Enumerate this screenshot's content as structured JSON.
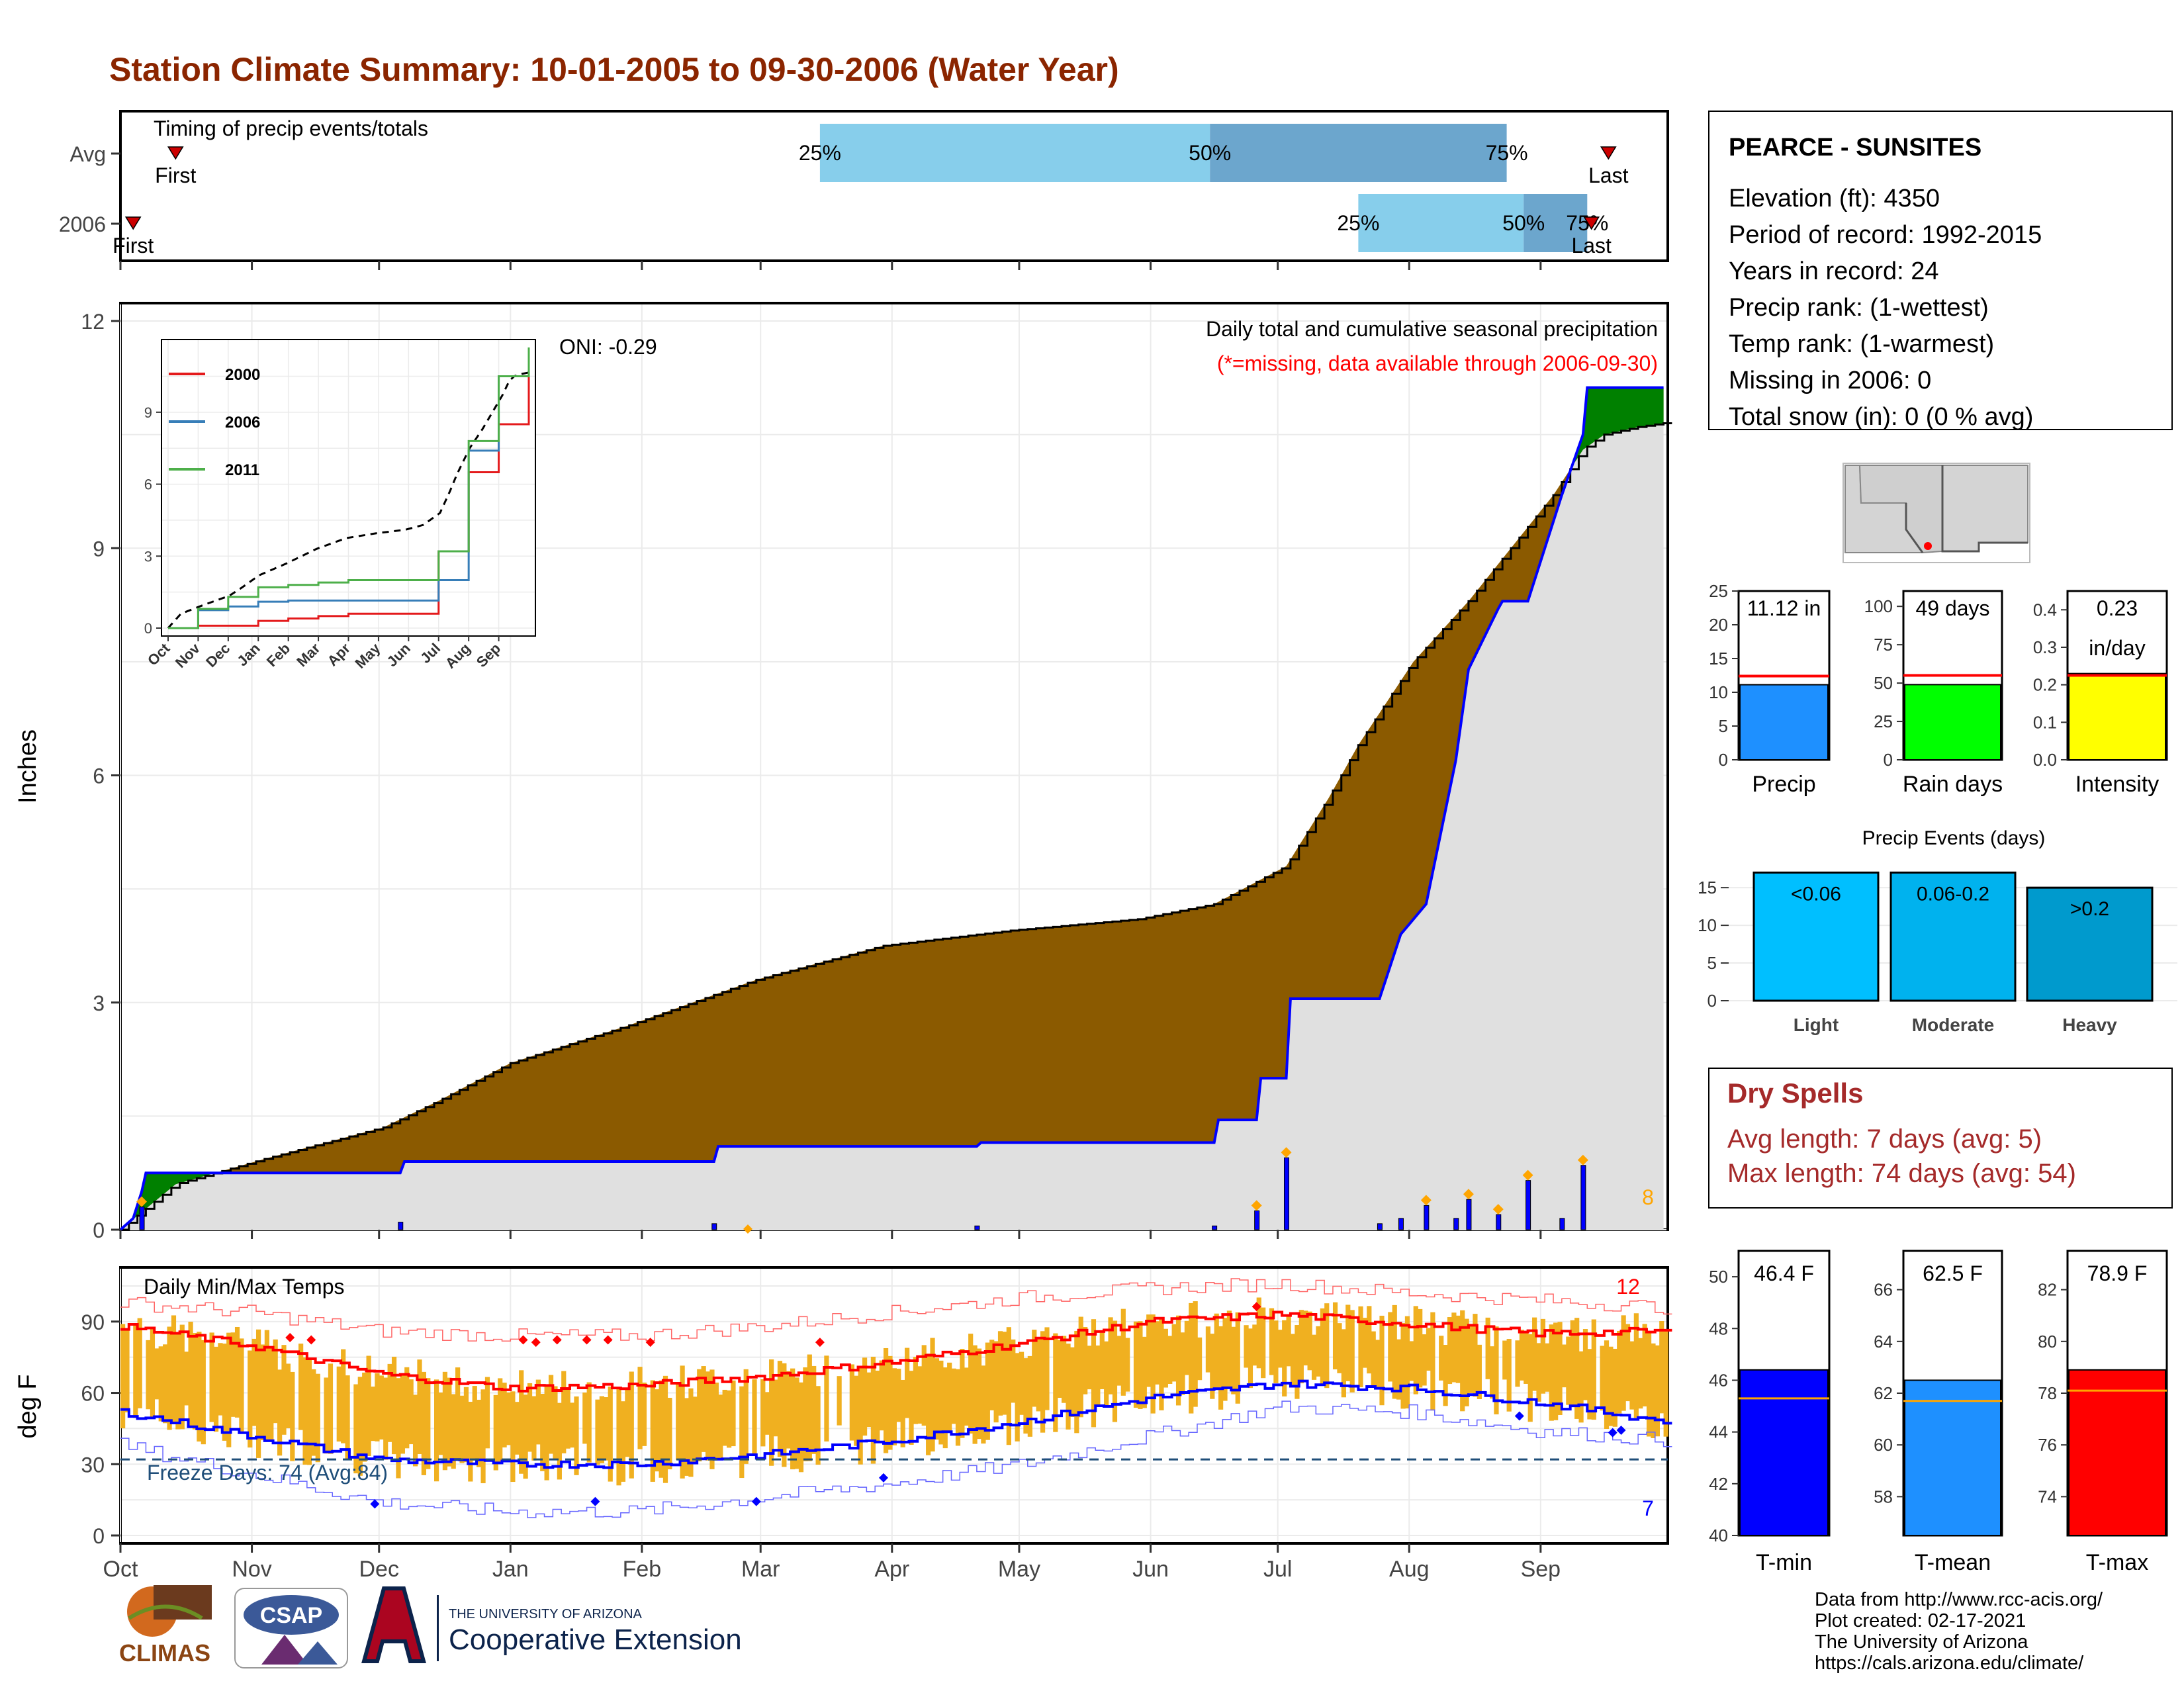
{
  "title": "Station Climate Summary: 10-01-2005 to 09-30-2006 (Water Year)",
  "colors": {
    "title": "#8B2500",
    "avg_area": "#8B5A00",
    "above_area": "#008000",
    "base_area": "#E0E0E0",
    "obs_line": "#0000FF",
    "quartile_light": "#87CEEB",
    "quartile_dark": "#6CA6CD",
    "temp_bar": "#F0B020",
    "tmax_line": "#FF0000",
    "tmin_line": "#0000FF",
    "freeze_line": "#1F4E79",
    "drought_red": "#A52A2A",
    "precip_blue": "#1E90FF",
    "raindays_green": "#00FF00",
    "intensity_yellow": "#FFFF00",
    "events_light": "#00BFFF",
    "events_mod": "#00B2EE",
    "events_heavy": "#009ACD",
    "tmin_blue": "#0000FF",
    "tmean_blue": "#1E90FF",
    "tmax_red": "#FF0000"
  },
  "timing": {
    "title": "Timing of precip events/totals",
    "rows": [
      {
        "label": "Avg",
        "first": "First",
        "last": "Last",
        "q25": "25%",
        "q50": "50%",
        "q75": "75%",
        "first_day": 13,
        "q25_day": 165,
        "q50_day": 257,
        "q75_day": 327,
        "last_day": 351
      },
      {
        "label": "2006",
        "first": "First",
        "last": "Last",
        "q25": "25%",
        "q50": "50%",
        "q75": "75%",
        "first_day": 3,
        "q25_day": 292,
        "q50_day": 331,
        "q75_day": 346,
        "last_day": 347
      }
    ]
  },
  "precip_chart": {
    "ylabel": "Inches",
    "yticks": [
      "0",
      "3",
      "6",
      "9",
      "12"
    ],
    "legend_title": "Daily total and cumulative seasonal precipitation",
    "legend_note": "(*=missing, data available through 2006-09-30)",
    "oni": "ONI: -0.29",
    "count_label": "8"
  },
  "inset": {
    "yticks": [
      "0",
      "3",
      "6",
      "9"
    ],
    "months": [
      "Oct",
      "Nov",
      "Dec",
      "Jan",
      "Feb",
      "Mar",
      "Apr",
      "May",
      "Jun",
      "Jul",
      "Aug",
      "Sep"
    ],
    "series": [
      {
        "name": "2000",
        "color": "#E41A1C"
      },
      {
        "name": "2006",
        "color": "#377EB8"
      },
      {
        "name": "2011",
        "color": "#4DAF4A"
      }
    ]
  },
  "temp_chart": {
    "ylabel": "deg F",
    "yticks": [
      "0",
      "30",
      "60",
      "90"
    ],
    "title": "Daily Min/Max Temps",
    "freeze": "Freeze Days: 74 (Avg:84)",
    "hot_count": "12",
    "cold_count": "7",
    "months": [
      "Oct",
      "Nov",
      "Dec",
      "Jan",
      "Feb",
      "Mar",
      "Apr",
      "May",
      "Jun",
      "Jul",
      "Aug",
      "Sep"
    ]
  },
  "station": {
    "name": "PEARCE - SUNSITES",
    "lines": [
      "Elevation (ft): 4350",
      "Period of record: 1992-2015",
      "Years in record: 24",
      "Precip rank:  (1-wettest)",
      "Temp rank:  (1-warmest)",
      "Missing in 2006: 0",
      "Total snow (in): 0 (0 % avg)"
    ]
  },
  "precip_stats": [
    {
      "label": "Precip",
      "value": "11.12 in",
      "yticks": [
        "0",
        "5",
        "10",
        "15",
        "20",
        "25"
      ],
      "num": 11.12,
      "avg": 12.4,
      "max": 25
    },
    {
      "label": "Rain days",
      "value": "49 days",
      "yticks": [
        "0",
        "25",
        "50",
        "75",
        "100"
      ],
      "num": 49,
      "avg": 55,
      "max": 110
    },
    {
      "label": "Intensity",
      "value": "0.23",
      "value2": "in/day",
      "yticks": [
        "0.0",
        "0.1",
        "0.2",
        "0.3",
        "0.4"
      ],
      "num": 0.23,
      "avg": 0.225,
      "max": 0.45
    }
  ],
  "events": {
    "title": "Precip Events (days)",
    "yticks": [
      "0",
      "5",
      "10",
      "15"
    ],
    "bars": [
      {
        "label": "Light",
        "value": "<0.06",
        "num": 17
      },
      {
        "label": "Moderate",
        "value": "0.06-0.2",
        "num": 17
      },
      {
        "label": "Heavy",
        "value": ">0.2",
        "num": 15
      }
    ]
  },
  "dry_spells": {
    "title": "Dry Spells",
    "avg": "Avg length: 7 days (avg: 5)",
    "max": "Max length: 74 days (avg: 54)"
  },
  "temp_stats": [
    {
      "label": "T-min",
      "value": "46.4 F",
      "yticks": [
        "40",
        "42",
        "44",
        "46",
        "48",
        "50"
      ],
      "min": 40,
      "max": 51,
      "num": 46.4,
      "avg": 45.3
    },
    {
      "label": "T-mean",
      "value": "62.5 F",
      "yticks": [
        "58",
        "60",
        "62",
        "64",
        "66"
      ],
      "min": 56.5,
      "max": 67.5,
      "num": 62.5,
      "avg": 61.7
    },
    {
      "label": "T-max",
      "value": "78.9 F",
      "yticks": [
        "74",
        "76",
        "78",
        "80",
        "82"
      ],
      "min": 72.5,
      "max": 83.5,
      "num": 78.9,
      "avg": 78.1
    }
  ],
  "footer": {
    "lines": [
      "Data from http://www.rcc-acis.org/",
      "Plot created: 02-17-2021",
      "The University of Arizona",
      "https://cals.arizona.edu/climate/"
    ],
    "climas": "CLIMAS",
    "csap": "CSAP",
    "ua_small": "THE UNIVERSITY OF ARIZONA",
    "ua_big": "Cooperative Extension"
  },
  "chart_data": [
    {
      "type": "area",
      "title": "Daily total and cumulative seasonal precipitation",
      "ylabel": "Inches",
      "ylim": [
        0,
        12
      ],
      "x_axis": "day of water year (Oct 1 = 0)",
      "series": [
        {
          "name": "avg_cumulative",
          "x": [
            0,
            13,
            35,
            62,
            75,
            92,
            120,
            150,
            180,
            210,
            240,
            258,
            275,
            285,
            292,
            305,
            318,
            328,
            338,
            345,
            350,
            358,
            364
          ],
          "values": [
            0,
            0.6,
            0.95,
            1.35,
            1.7,
            2.2,
            2.7,
            3.3,
            3.75,
            3.95,
            4.1,
            4.3,
            4.8,
            5.7,
            6.4,
            7.5,
            8.3,
            9.0,
            9.7,
            10.3,
            10.5,
            10.6,
            10.65
          ]
        },
        {
          "name": "2006_cumulative",
          "x": [
            0,
            3,
            5,
            6,
            66,
            67,
            140,
            141,
            202,
            203,
            258,
            259,
            268,
            269,
            275,
            276,
            297,
            302,
            308,
            315,
            318,
            325,
            326,
            332,
            340,
            345,
            346,
            364
          ],
          "values": [
            0,
            0.15,
            0.5,
            0.75,
            0.75,
            0.9,
            0.9,
            1.1,
            1.1,
            1.15,
            1.15,
            1.45,
            1.45,
            2.0,
            2.0,
            3.05,
            3.05,
            3.9,
            4.3,
            6.2,
            7.4,
            8.2,
            8.3,
            8.3,
            9.7,
            10.5,
            11.12,
            11.12
          ]
        }
      ],
      "daily_bars": {
        "x": [
          5,
          66,
          140,
          202,
          258,
          268,
          275,
          297,
          302,
          308,
          315,
          318,
          325,
          332,
          340,
          345
        ],
        "values": [
          0.3,
          0.1,
          0.08,
          0.05,
          0.05,
          0.25,
          0.95,
          0.08,
          0.15,
          0.32,
          0.15,
          0.4,
          0.2,
          0.65,
          0.15,
          0.85
        ]
      }
    },
    {
      "type": "line",
      "title": "",
      "xlabel": "",
      "ylabel": "",
      "ylim": [
        0,
        11.7
      ],
      "x": [
        "Oct",
        "Nov",
        "Dec",
        "Jan",
        "Feb",
        "Mar",
        "Apr",
        "May",
        "Jun",
        "Jul",
        "Aug",
        "Sep",
        "Oct"
      ],
      "series": [
        {
          "name": "2000",
          "values": [
            0,
            0.1,
            0.1,
            0.3,
            0.4,
            0.5,
            0.6,
            0.6,
            0.6,
            3.2,
            6.5,
            8.5,
            10.9
          ]
        },
        {
          "name": "2006",
          "values": [
            0,
            0.75,
            0.9,
            1.1,
            1.15,
            1.15,
            1.15,
            1.15,
            1.15,
            2.0,
            7.4,
            10.5,
            11.12
          ]
        },
        {
          "name": "2011",
          "values": [
            0,
            0.8,
            1.3,
            1.7,
            1.8,
            1.9,
            2.0,
            2.0,
            2.0,
            3.2,
            7.8,
            10.5,
            11.7
          ]
        }
      ]
    },
    {
      "type": "line",
      "title": "Daily Min/Max Temps",
      "ylabel": "deg F",
      "ylim": [
        0,
        110
      ],
      "x": [
        "Oct",
        "Nov",
        "Dec",
        "Jan",
        "Feb",
        "Mar",
        "Apr",
        "May",
        "Jun",
        "Jul",
        "Aug",
        "Sep",
        "Oct"
      ],
      "series": [
        {
          "name": "avg_tmax",
          "values": [
            88,
            80,
            68,
            62,
            63,
            67,
            73,
            81,
            90,
            93,
            89,
            85,
            86
          ]
        },
        {
          "name": "avg_tmin",
          "values": [
            52,
            42,
            32,
            30,
            30,
            34,
            40,
            48,
            58,
            64,
            62,
            56,
            48
          ]
        },
        {
          "name": "record_high",
          "values": [
            98,
            94,
            86,
            84,
            84,
            88,
            94,
            100,
            104,
            106,
            102,
            99,
            96
          ]
        },
        {
          "name": "record_low",
          "values": [
            38,
            26,
            14,
            10,
            10,
            16,
            22,
            30,
            42,
            54,
            52,
            44,
            40
          ]
        }
      ],
      "freeze_line": 32
    }
  ]
}
